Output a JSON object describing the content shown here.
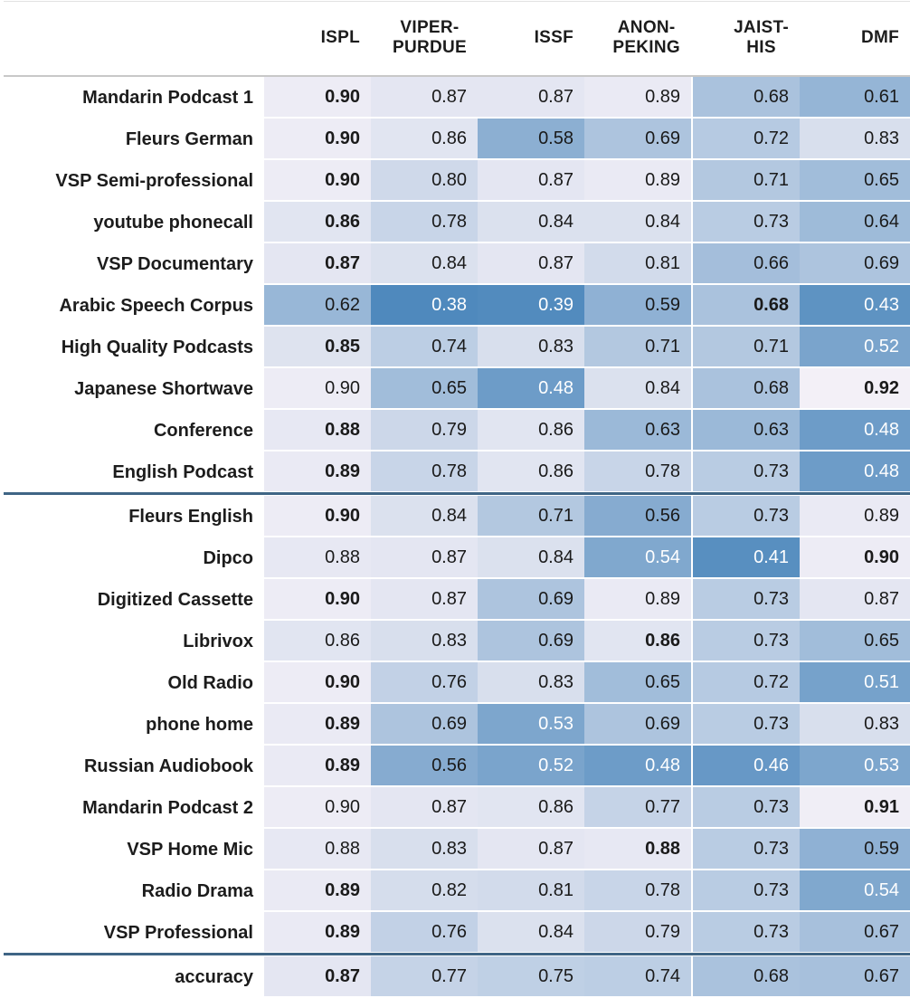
{
  "chart_data": {
    "type": "heatmap",
    "columns": [
      "ISPL",
      "VIPER-\nPURDUE",
      "ISSF",
      "ANON-\nPEKING",
      "JAIST-\nHIS",
      "DMF"
    ],
    "groups": [
      {
        "rows": [
          {
            "label": "Mandarin Podcast 1",
            "values": [
              "0.90",
              "0.87",
              "0.87",
              "0.89",
              "0.68",
              "0.61"
            ],
            "bold": [
              0
            ]
          },
          {
            "label": "Fleurs German",
            "values": [
              "0.90",
              "0.86",
              "0.58",
              "0.69",
              "0.72",
              "0.83"
            ],
            "bold": [
              0
            ]
          },
          {
            "label": "VSP Semi-professional",
            "values": [
              "0.90",
              "0.80",
              "0.87",
              "0.89",
              "0.71",
              "0.65"
            ],
            "bold": [
              0
            ]
          },
          {
            "label": "youtube phonecall",
            "values": [
              "0.86",
              "0.78",
              "0.84",
              "0.84",
              "0.73",
              "0.64"
            ],
            "bold": [
              0
            ]
          },
          {
            "label": "VSP Documentary",
            "values": [
              "0.87",
              "0.84",
              "0.87",
              "0.81",
              "0.66",
              "0.69"
            ],
            "bold": [
              0
            ]
          },
          {
            "label": "Arabic Speech Corpus",
            "values": [
              "0.62",
              "0.38",
              "0.39",
              "0.59",
              "0.68",
              "0.43"
            ],
            "bold": [
              4
            ]
          },
          {
            "label": "High Quality Podcasts",
            "values": [
              "0.85",
              "0.74",
              "0.83",
              "0.71",
              "0.71",
              "0.52"
            ],
            "bold": [
              0
            ]
          },
          {
            "label": "Japanese Shortwave",
            "values": [
              "0.90",
              "0.65",
              "0.48",
              "0.84",
              "0.68",
              "0.92"
            ],
            "bold": [
              5
            ]
          },
          {
            "label": "Conference",
            "values": [
              "0.88",
              "0.79",
              "0.86",
              "0.63",
              "0.63",
              "0.48"
            ],
            "bold": [
              0
            ]
          },
          {
            "label": "English Podcast",
            "values": [
              "0.89",
              "0.78",
              "0.86",
              "0.78",
              "0.73",
              "0.48"
            ],
            "bold": [
              0
            ]
          }
        ]
      },
      {
        "rows": [
          {
            "label": "Fleurs English",
            "values": [
              "0.90",
              "0.84",
              "0.71",
              "0.56",
              "0.73",
              "0.89"
            ],
            "bold": [
              0
            ]
          },
          {
            "label": "Dipco",
            "values": [
              "0.88",
              "0.87",
              "0.84",
              "0.54",
              "0.41",
              "0.90"
            ],
            "bold": [
              5
            ]
          },
          {
            "label": "Digitized Cassette",
            "values": [
              "0.90",
              "0.87",
              "0.69",
              "0.89",
              "0.73",
              "0.87"
            ],
            "bold": [
              0
            ]
          },
          {
            "label": "Librivox",
            "values": [
              "0.86",
              "0.83",
              "0.69",
              "0.86",
              "0.73",
              "0.65"
            ],
            "bold": [
              3
            ]
          },
          {
            "label": "Old Radio",
            "values": [
              "0.90",
              "0.76",
              "0.83",
              "0.65",
              "0.72",
              "0.51"
            ],
            "bold": [
              0
            ]
          },
          {
            "label": "phone home",
            "values": [
              "0.89",
              "0.69",
              "0.53",
              "0.69",
              "0.73",
              "0.83"
            ],
            "bold": [
              0
            ]
          },
          {
            "label": "Russian Audiobook",
            "values": [
              "0.89",
              "0.56",
              "0.52",
              "0.48",
              "0.46",
              "0.53"
            ],
            "bold": [
              0
            ]
          },
          {
            "label": "Mandarin Podcast 2",
            "values": [
              "0.90",
              "0.87",
              "0.86",
              "0.77",
              "0.73",
              "0.91"
            ],
            "bold": [
              5
            ]
          },
          {
            "label": "VSP Home Mic",
            "values": [
              "0.88",
              "0.83",
              "0.87",
              "0.88",
              "0.73",
              "0.59"
            ],
            "bold": [
              3
            ]
          },
          {
            "label": "Radio Drama",
            "values": [
              "0.89",
              "0.82",
              "0.81",
              "0.78",
              "0.73",
              "0.54"
            ],
            "bold": [
              0
            ]
          },
          {
            "label": "VSP Professional",
            "values": [
              "0.89",
              "0.76",
              "0.84",
              "0.79",
              "0.73",
              "0.67"
            ],
            "bold": [
              0
            ]
          }
        ]
      },
      {
        "rows": [
          {
            "label": "accuracy",
            "values": [
              "0.87",
              "0.77",
              "0.75",
              "0.74",
              "0.68",
              "0.67"
            ],
            "bold": [
              0
            ]
          }
        ]
      }
    ],
    "color_scale": {
      "low_value": 0.38,
      "high_value": 0.92,
      "low_color": "#4f89bd",
      "high_color": "#f3f0f7",
      "light_text": "#ffffff",
      "dark_text": "#1a1a1a"
    }
  }
}
